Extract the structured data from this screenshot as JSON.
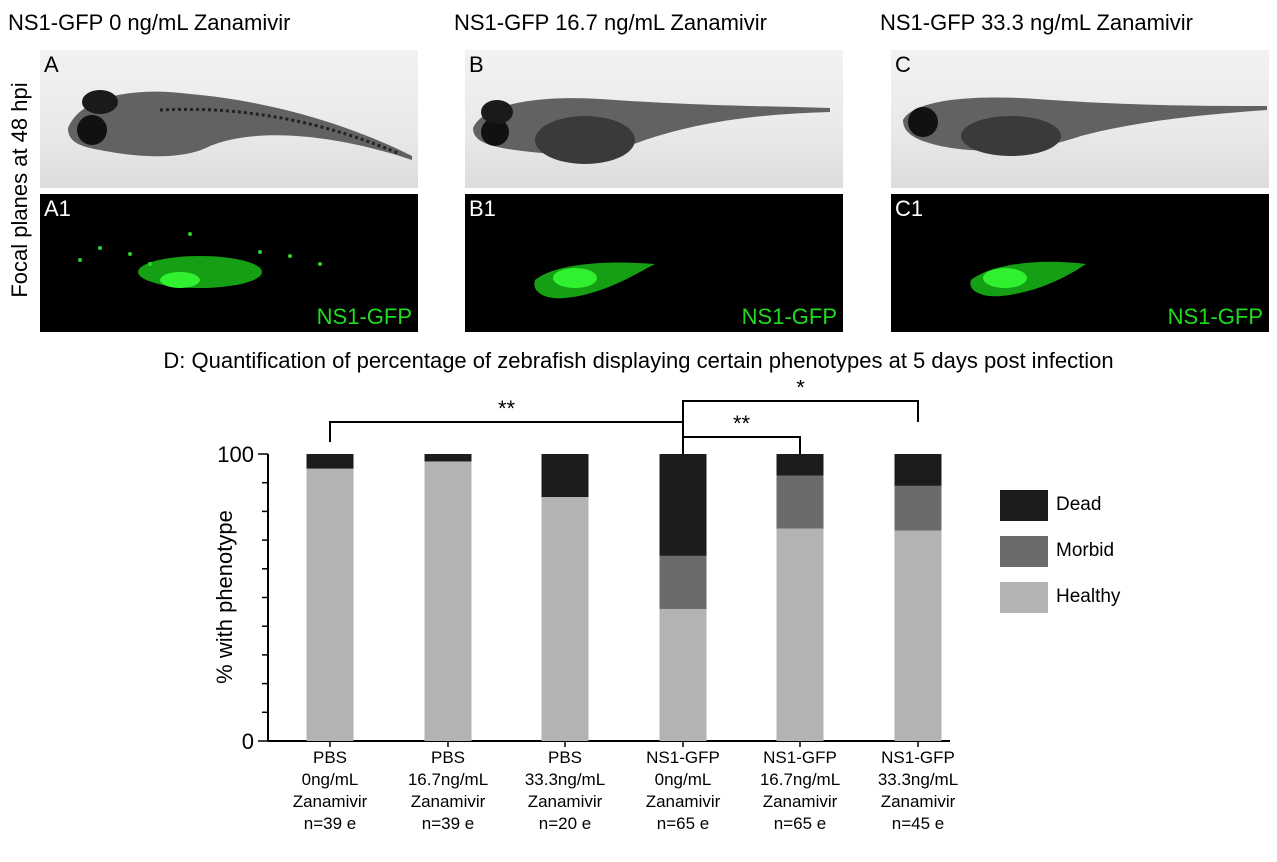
{
  "panels": {
    "column_titles": [
      "NS1-GFP 0 ng/mL Zanamivir",
      "NS1-GFP 16.7 ng/mL Zanamivir",
      "NS1-GFP 33.3 ng/mL Zanamivir"
    ],
    "row_label": "Focal planes at 48 hpi",
    "bright_labels": [
      "A",
      "B",
      "C"
    ],
    "fluor_labels": [
      "A1",
      "B1",
      "C1"
    ],
    "gfp_tag": "NS1-GFP"
  },
  "colors": {
    "dead": "#1c1c1c",
    "morbid": "#6b6b6b",
    "healthy": "#b3b3b3",
    "gfp": "#1fdc1f"
  },
  "chart_data": {
    "type": "bar",
    "stacked": true,
    "title": "D: Quantification of percentage of zebrafish displaying certain phenotypes at 5 days post infection",
    "ylabel": "% with phenotype",
    "ylim": [
      0,
      100
    ],
    "yticks": [
      0,
      100
    ],
    "categories": [
      [
        "PBS",
        "0ng/mL",
        "Zanamivir",
        "n=39 e"
      ],
      [
        "PBS",
        "16.7ng/mL",
        "Zanamivir",
        "n=39 e"
      ],
      [
        "PBS",
        "33.3ng/mL",
        "Zanamivir",
        "n=20 e"
      ],
      [
        "NS1-GFP",
        "0ng/mL",
        "Zanamivir",
        "n=65 e"
      ],
      [
        "NS1-GFP",
        "16.7ng/mL",
        "Zanamivir",
        "n=65 e"
      ],
      [
        "NS1-GFP",
        "33.3ng/mL",
        "Zanamivir",
        "n=45 e"
      ]
    ],
    "series": [
      {
        "name": "Healthy",
        "values": [
          94.9,
          97.4,
          85,
          46,
          74,
          73.3
        ]
      },
      {
        "name": "Morbid",
        "values": [
          0,
          0,
          0,
          18.5,
          18.5,
          15.6
        ]
      },
      {
        "name": "Dead",
        "values": [
          5.1,
          2.6,
          15,
          35.5,
          7.5,
          11.1
        ]
      }
    ],
    "legend": {
      "placement": "right",
      "order": [
        "Dead",
        "Morbid",
        "Healthy"
      ]
    },
    "significance": [
      {
        "from": 0,
        "to": 3,
        "label": "**"
      },
      {
        "from": 3,
        "to": 4,
        "label": "**"
      },
      {
        "from": 3,
        "to": 5,
        "label": "*"
      }
    ]
  }
}
